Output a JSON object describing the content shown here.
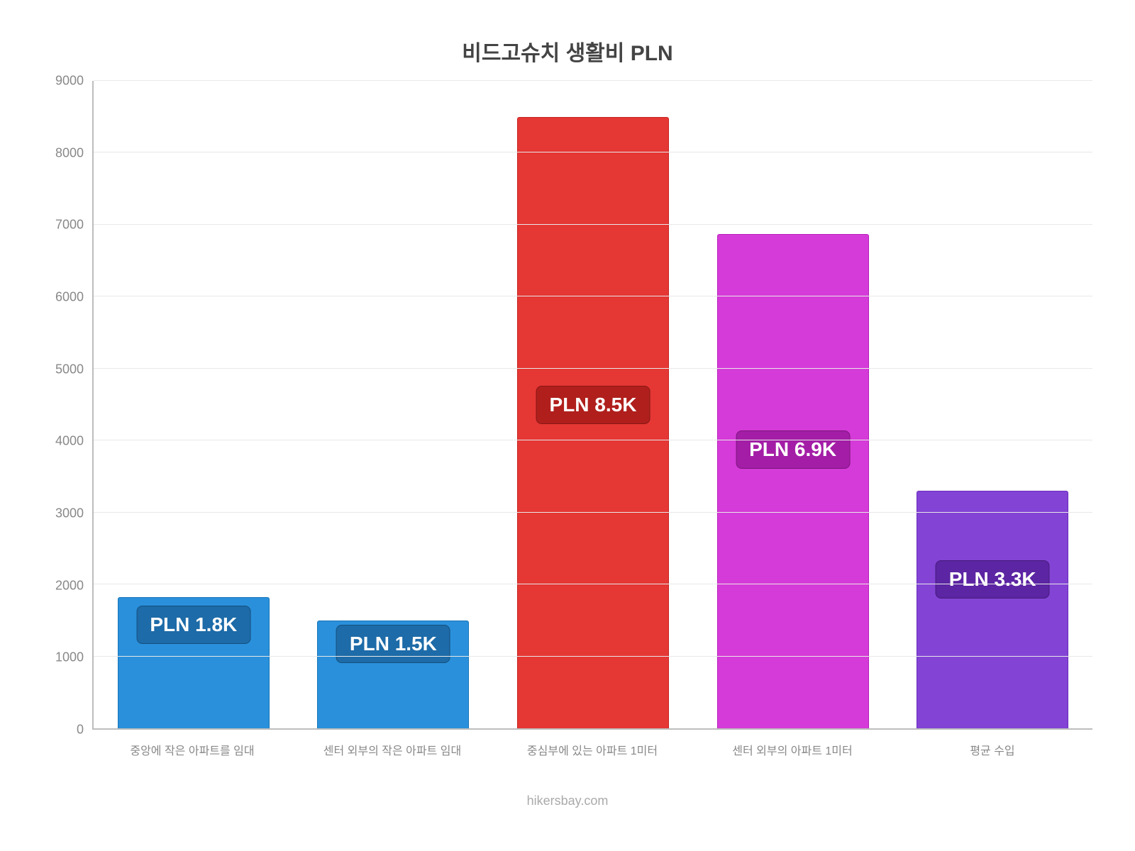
{
  "chart": {
    "type": "bar",
    "title": "비드고슈치 생활비 PLN",
    "title_fontsize": 30,
    "title_color": "#444444",
    "background_color": "#ffffff",
    "axis_color": "#bdbdbd",
    "grid_color": "#e8e8e8",
    "tick_label_color": "#888888",
    "tick_label_fontsize": 18,
    "x_label_fontsize": 16,
    "ylim": [
      0,
      9000
    ],
    "ytick_step": 1000,
    "yticks": [
      0,
      1000,
      2000,
      3000,
      4000,
      5000,
      6000,
      7000,
      8000,
      9000
    ],
    "bar_width_pct": 76,
    "bar_offset_pct": 12,
    "categories": [
      "중앙에 작은 아파트를 임대",
      "센터 외부의 작은 아파트 임대",
      "중심부에 있는 아파트 1미터",
      "센터 외부의 아파트 1미터",
      "평균 수입"
    ],
    "bars": [
      {
        "value": 1820,
        "label": "PLN 1.8K",
        "fill": "#2a90db",
        "border": "#1876b8",
        "badge_bg": "#1d6ba8",
        "badge_y_pct": 16
      },
      {
        "value": 1500,
        "label": "PLN 1.5K",
        "fill": "#2a90db",
        "border": "#1876b8",
        "badge_bg": "#1d6ba8",
        "badge_y_pct": 13
      },
      {
        "value": 8500,
        "label": "PLN 8.5K",
        "fill": "#e53734",
        "border": "#c42421",
        "badge_bg": "#b01f1c",
        "badge_y_pct": 50
      },
      {
        "value": 6870,
        "label": "PLN 6.9K",
        "fill": "#d53bd8",
        "border": "#b81fbb",
        "badge_bg": "#a31da6",
        "badge_y_pct": 43
      },
      {
        "value": 3300,
        "label": "PLN 3.3K",
        "fill": "#8344d6",
        "border": "#6a2bbc",
        "badge_bg": "#5c25a3",
        "badge_y_pct": 23
      }
    ],
    "badge_fontsize": 28,
    "badge_text_color": "#ffffff",
    "source": "hikersbay.com",
    "source_color": "#aaaaaa",
    "source_fontsize": 18
  }
}
